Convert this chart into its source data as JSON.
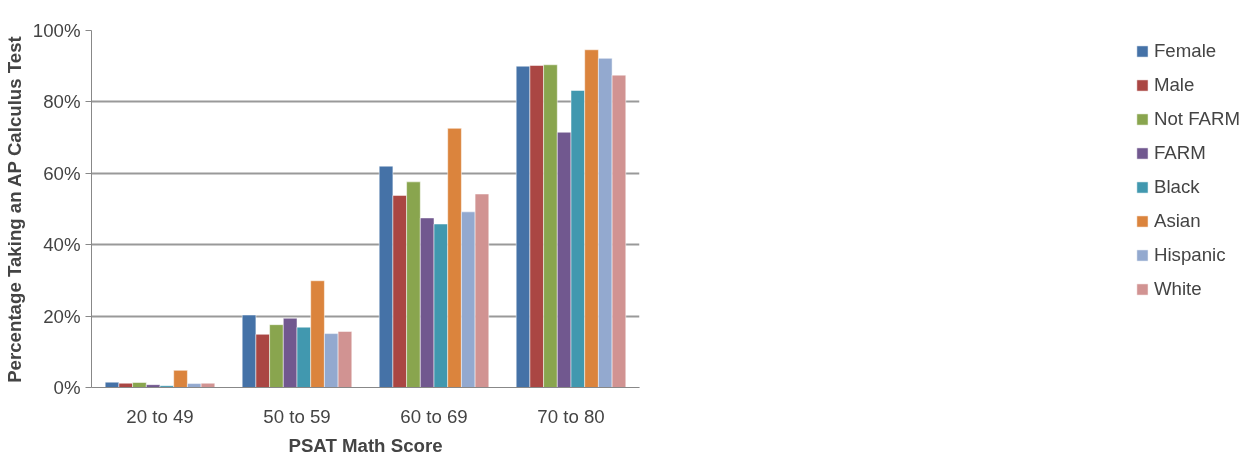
{
  "chart_data": {
    "type": "bar",
    "xlabel": "PSAT Math Score",
    "ylabel": "Percentage Taking an AP Calculus Test",
    "categories": [
      "20 to 49",
      "50 to 59",
      "60 to 69",
      "70 to 80"
    ],
    "series": [
      {
        "name": "Female",
        "color": "#4572a7",
        "values": [
          1.5,
          20.3,
          62,
          90
        ]
      },
      {
        "name": "Male",
        "color": "#aa4643",
        "values": [
          1.2,
          14.9,
          53.8,
          90.2
        ]
      },
      {
        "name": "Not FARM",
        "color": "#89a54e",
        "values": [
          1.4,
          17.6,
          57.6,
          90.4
        ]
      },
      {
        "name": "FARM",
        "color": "#71588f",
        "values": [
          0.8,
          19.4,
          47.5,
          71.5
        ]
      },
      {
        "name": "Black",
        "color": "#4198af",
        "values": [
          0.5,
          16.9,
          45.8,
          83.2
        ]
      },
      {
        "name": "Asian",
        "color": "#db843d",
        "values": [
          4.8,
          29.9,
          72.6,
          94.6
        ]
      },
      {
        "name": "Hispanic",
        "color": "#93a9cf",
        "values": [
          1.1,
          15.1,
          49.2,
          92.2
        ]
      },
      {
        "name": "White",
        "color": "#d19392",
        "values": [
          1.2,
          15.7,
          54.2,
          87.5
        ]
      }
    ],
    "ylim": [
      0,
      100
    ],
    "yticks": [
      {
        "value": 0,
        "label": "0%"
      },
      {
        "value": 20,
        "label": "20%"
      },
      {
        "value": 40,
        "label": "40%"
      },
      {
        "value": 60,
        "label": "60%"
      },
      {
        "value": 80,
        "label": "80%"
      },
      {
        "value": 100,
        "label": "100%"
      }
    ],
    "grid": "y",
    "legend": "right"
  }
}
